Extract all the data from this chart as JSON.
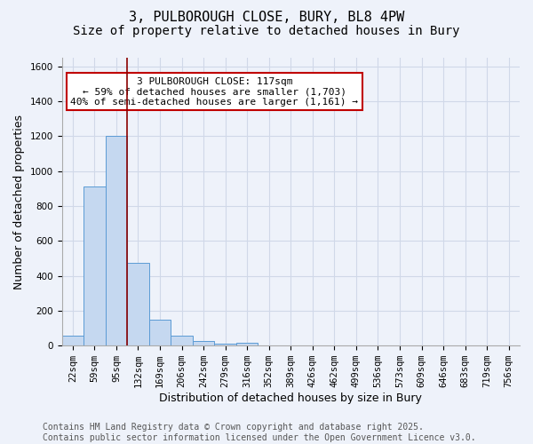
{
  "title_line1": "3, PULBOROUGH CLOSE, BURY, BL8 4PW",
  "title_line2": "Size of property relative to detached houses in Bury",
  "xlabel": "Distribution of detached houses by size in Bury",
  "ylabel": "Number of detached properties",
  "bar_values": [
    55,
    910,
    1200,
    475,
    150,
    55,
    28,
    10,
    18,
    0,
    0,
    0,
    0,
    0,
    0,
    0,
    0,
    0,
    0,
    0,
    0
  ],
  "bin_labels": [
    "22sqm",
    "59sqm",
    "95sqm",
    "132sqm",
    "169sqm",
    "206sqm",
    "242sqm",
    "279sqm",
    "316sqm",
    "352sqm",
    "389sqm",
    "426sqm",
    "462sqm",
    "499sqm",
    "536sqm",
    "573sqm",
    "609sqm",
    "646sqm",
    "683sqm",
    "719sqm",
    "756sqm"
  ],
  "bar_color": "#c5d8f0",
  "bar_edge_color": "#5b9bd5",
  "grid_color": "#d0d8e8",
  "background_color": "#eef2fa",
  "vline_x_index": 2,
  "vline_color": "#8b0000",
  "annotation_text": "3 PULBOROUGH CLOSE: 117sqm\n← 59% of detached houses are smaller (1,703)\n40% of semi-detached houses are larger (1,161) →",
  "annotation_box_color": "white",
  "annotation_box_edge": "#c00000",
  "ylim": [
    0,
    1650
  ],
  "yticks": [
    0,
    200,
    400,
    600,
    800,
    1000,
    1200,
    1400,
    1600
  ],
  "footer_text": "Contains HM Land Registry data © Crown copyright and database right 2025.\nContains public sector information licensed under the Open Government Licence v3.0.",
  "title_fontsize": 11,
  "subtitle_fontsize": 10,
  "axis_label_fontsize": 9,
  "tick_fontsize": 7.5,
  "annotation_fontsize": 8,
  "footer_fontsize": 7
}
